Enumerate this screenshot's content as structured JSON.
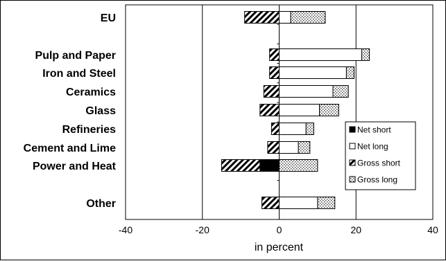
{
  "chart_data": {
    "type": "bar",
    "orientation": "horizontal",
    "stacked": true,
    "categories": [
      "EU",
      "Pulp and Paper",
      "Iron and Steel",
      "Ceramics",
      "Glass",
      "Refineries",
      "Cement and Lime",
      "Power and Heat",
      "Other"
    ],
    "series": [
      {
        "name": "Net short",
        "color": "#000000",
        "pattern": "solid",
        "values": [
          0,
          0,
          0,
          0,
          0,
          0,
          0,
          -5,
          0
        ]
      },
      {
        "name": "Net long",
        "color": "#ffffff",
        "pattern": "white",
        "values": [
          3,
          21.5,
          17.5,
          14,
          10.5,
          7,
          5,
          0,
          10
        ]
      },
      {
        "name": "Gross short",
        "color": "#000000",
        "pattern": "diagonal-hatch",
        "values": [
          -9,
          -2.5,
          -2.5,
          -4,
          -5,
          -2,
          -3,
          -10,
          -4.5
        ]
      },
      {
        "name": "Gross long",
        "color": "#808080",
        "pattern": "dotted",
        "values": [
          9,
          2,
          2,
          4,
          5,
          2,
          3,
          10,
          4.5
        ]
      }
    ],
    "xlabel": "in percent",
    "xlim": [
      -40,
      40
    ],
    "xticks": [
      "-40",
      "-20",
      "0",
      "20",
      "40"
    ],
    "grid": "vertical",
    "legend_position": "right"
  }
}
